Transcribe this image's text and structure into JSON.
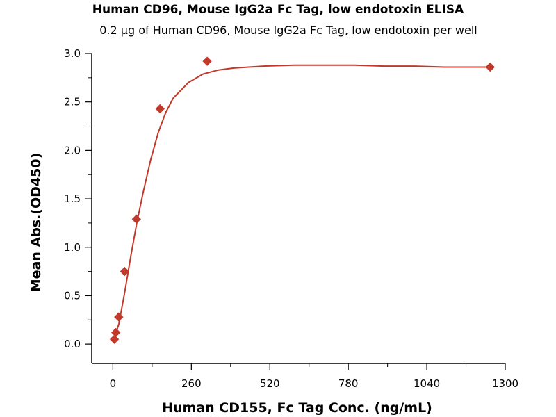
{
  "chart_data": {
    "type": "scatter",
    "title": "Human CD96, Mouse IgG2a Fc Tag, low endotoxin ELISA",
    "subtitle": "0.2 µg of Human CD96, Mouse IgG2a Fc Tag, low endotoxin per well",
    "xlabel": "Human CD155, Fc Tag Conc. (ng/mL)",
    "ylabel": "Mean Abs.(OD450)",
    "xlim": [
      -70,
      1300
    ],
    "ylim": [
      -0.2,
      3.0
    ],
    "xticks": [
      0,
      260,
      520,
      780,
      1040,
      1300
    ],
    "yticks": [
      0.0,
      0.5,
      1.0,
      1.5,
      2.0,
      2.5,
      3.0
    ],
    "ytick_labels": [
      "0.0",
      "0.5",
      "1.0",
      "1.5",
      "2.0",
      "2.5",
      "3.0"
    ],
    "grid": false,
    "colors": {
      "series": "#c0392b",
      "axis": "#000000"
    },
    "series": [
      {
        "points": [
          {
            "x": 4.9,
            "y": 0.05
          },
          {
            "x": 9.8,
            "y": 0.12
          },
          {
            "x": 19.5,
            "y": 0.28
          },
          {
            "x": 39.1,
            "y": 0.75
          },
          {
            "x": 78.1,
            "y": 1.29
          },
          {
            "x": 156.3,
            "y": 2.43
          },
          {
            "x": 312.5,
            "y": 2.92
          },
          {
            "x": 1250,
            "y": 2.86
          }
        ],
        "fit_curve": [
          {
            "x": 0,
            "y": 0.02
          },
          {
            "x": 20,
            "y": 0.21
          },
          {
            "x": 40,
            "y": 0.55
          },
          {
            "x": 60,
            "y": 0.92
          },
          {
            "x": 80,
            "y": 1.26
          },
          {
            "x": 100,
            "y": 1.56
          },
          {
            "x": 125,
            "y": 1.9
          },
          {
            "x": 150,
            "y": 2.18
          },
          {
            "x": 175,
            "y": 2.39
          },
          {
            "x": 200,
            "y": 2.54
          },
          {
            "x": 250,
            "y": 2.7
          },
          {
            "x": 300,
            "y": 2.79
          },
          {
            "x": 350,
            "y": 2.83
          },
          {
            "x": 400,
            "y": 2.85
          },
          {
            "x": 500,
            "y": 2.87
          },
          {
            "x": 600,
            "y": 2.88
          },
          {
            "x": 700,
            "y": 2.88
          },
          {
            "x": 800,
            "y": 2.88
          },
          {
            "x": 900,
            "y": 2.87
          },
          {
            "x": 1000,
            "y": 2.87
          },
          {
            "x": 1100,
            "y": 2.86
          },
          {
            "x": 1250,
            "y": 2.86
          }
        ]
      }
    ]
  }
}
